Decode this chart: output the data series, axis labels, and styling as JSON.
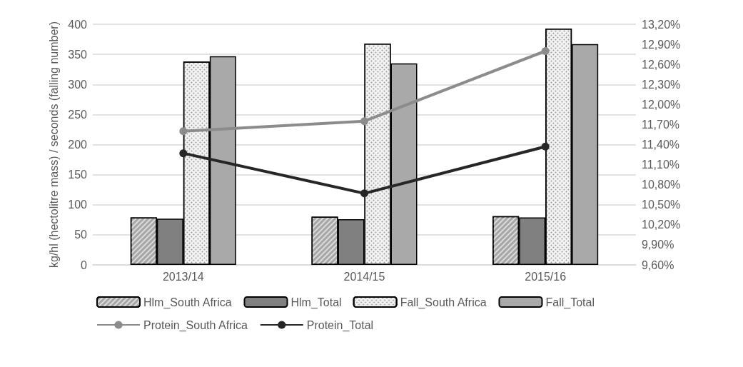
{
  "chart_data": {
    "type": "bar",
    "ylabel": "kg/hl (hectolitre mass) / seconds (falling number)",
    "categories": [
      "2013/14",
      "2014/15",
      "2015/16"
    ],
    "series": [
      {
        "name": "Hlm_South Africa",
        "color": "#a6a6a6",
        "values": [
          79,
          80,
          81
        ]
      },
      {
        "name": "Hlm_Total",
        "color": "#808080",
        "values": [
          77,
          76,
          79
        ]
      },
      {
        "name": "Fall_South Africa",
        "color": "#f2f2f2",
        "values": [
          338,
          368,
          393
        ]
      },
      {
        "name": "Fall_Total",
        "color": "#a9a9a9",
        "values": [
          347,
          335,
          367
        ]
      },
      {
        "name": "Protein_South Africa",
        "type": "line",
        "axis": "y2",
        "color": "#8c8c8c",
        "values": [
          11.6,
          11.75,
          12.8
        ]
      },
      {
        "name": "Protein_Total",
        "type": "line",
        "axis": "y2",
        "color": "#262626",
        "values": [
          11.27,
          10.67,
          11.37
        ]
      }
    ],
    "ylim": [
      0,
      400
    ],
    "yticks": [
      0,
      50,
      100,
      150,
      200,
      250,
      300,
      350,
      400
    ],
    "y2lim": [
      9.6,
      13.2
    ],
    "y2ticks": [
      {
        "value": 9.6,
        "label": "9,60%"
      },
      {
        "value": 9.9,
        "label": "9,90%"
      },
      {
        "value": 10.2,
        "label": "10,20%"
      },
      {
        "value": 10.5,
        "label": "10,50%"
      },
      {
        "value": 10.8,
        "label": "10,80%"
      },
      {
        "value": 11.1,
        "label": "11,10%"
      },
      {
        "value": 11.4,
        "label": "11,40%"
      },
      {
        "value": 11.7,
        "label": "11,70%"
      },
      {
        "value": 12.0,
        "label": "12,00%"
      },
      {
        "value": 12.3,
        "label": "12,30%"
      },
      {
        "value": 12.6,
        "label": "12,60%"
      },
      {
        "value": 12.9,
        "label": "12,90%"
      },
      {
        "value": 13.2,
        "label": "13,20%"
      }
    ],
    "grid": "y",
    "legend": "bottom",
    "marker": "circle",
    "line_style": "solid"
  }
}
